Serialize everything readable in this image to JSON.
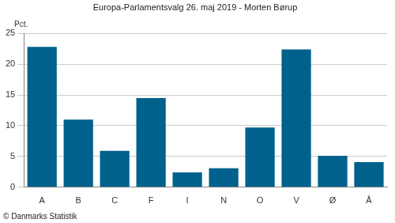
{
  "chart_data": {
    "type": "bar",
    "title": "Europa-Parlamentsvalg 26. maj 2019 - Morten Børup",
    "ylabel": "Pct.",
    "source": "© Danmarks Statistik",
    "categories": [
      "A",
      "B",
      "C",
      "F",
      "I",
      "N",
      "O",
      "V",
      "Ø",
      "Å"
    ],
    "values": [
      22.8,
      11.0,
      5.9,
      14.5,
      2.4,
      3.1,
      9.7,
      22.4,
      5.1,
      4.1
    ],
    "color": "#00628c",
    "ylim": [
      0,
      25
    ],
    "yticks": [
      0,
      5,
      10,
      15,
      20,
      25
    ],
    "grid": true
  }
}
